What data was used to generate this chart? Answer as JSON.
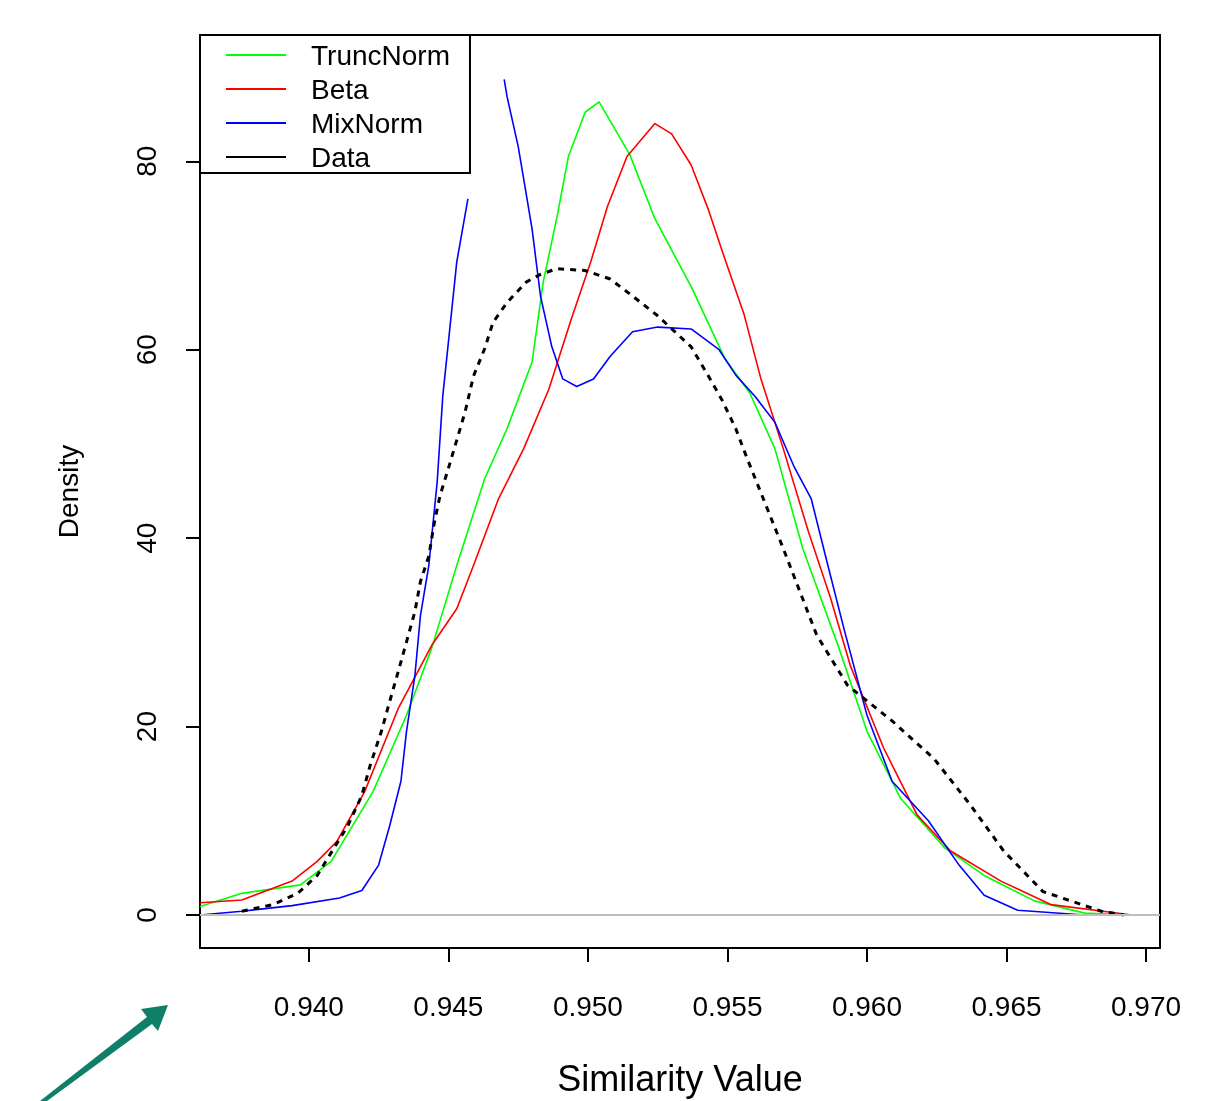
{
  "chart_data": {
    "type": "line",
    "xlabel": "Similarity Value",
    "ylabel": "Density",
    "xlim": [
      0.9361,
      0.9705
    ],
    "ylim": [
      -3.5,
      93.4
    ],
    "xticks": [
      {
        "value": 0.94,
        "label": "0.940"
      },
      {
        "value": 0.945,
        "label": "0.945"
      },
      {
        "value": 0.95,
        "label": "0.950"
      },
      {
        "value": 0.955,
        "label": "0.955"
      },
      {
        "value": 0.96,
        "label": "0.960"
      },
      {
        "value": 0.965,
        "label": "0.965"
      },
      {
        "value": 0.97,
        "label": "0.970"
      }
    ],
    "yticks": [
      0,
      20,
      40,
      60,
      80
    ],
    "grid": false,
    "legend": "top left",
    "marker": "none",
    "ref_lines": [
      {
        "axis": "y",
        "value": 0,
        "color": "#bebebe"
      }
    ],
    "series": [
      {
        "name": "TruncNorm",
        "color": "#00ff00",
        "line_style": "solid",
        "x": [
          0.9361,
          0.9376,
          0.9397,
          0.9408,
          0.9423,
          0.9435,
          0.9444,
          0.9453,
          0.9463,
          0.9471,
          0.948,
          0.9484,
          0.9489,
          0.9493,
          0.9499,
          0.9504,
          0.9515,
          0.9524,
          0.9537,
          0.9549,
          0.9558,
          0.9567,
          0.9577,
          0.959,
          0.96,
          0.9612,
          0.9628,
          0.9642,
          0.966,
          0.9678,
          0.9695
        ],
        "values": [
          0.9,
          2.3,
          3.2,
          5.7,
          13.1,
          21.2,
          28.3,
          37.1,
          46.3,
          51.6,
          58.7,
          67.2,
          74.2,
          80.5,
          85.2,
          86.3,
          80.7,
          73.9,
          66.7,
          59.1,
          55.4,
          49.5,
          38.9,
          28.3,
          19.5,
          12.4,
          7.1,
          4.2,
          1.5,
          0.2,
          0
        ]
      },
      {
        "name": "Beta",
        "color": "#ff0000",
        "line_style": "solid",
        "x": [
          0.9361,
          0.9376,
          0.9394,
          0.9403,
          0.941,
          0.942,
          0.9432,
          0.9444,
          0.9453,
          0.9459,
          0.9468,
          0.9477,
          0.9486,
          0.9494,
          0.9501,
          0.9507,
          0.9514,
          0.9524,
          0.953,
          0.9537,
          0.9543,
          0.9549,
          0.9556,
          0.9562,
          0.957,
          0.9579,
          0.9587,
          0.9594,
          0.9606,
          0.9618,
          0.963,
          0.9648,
          0.9666,
          0.9695
        ],
        "values": [
          1.3,
          1.6,
          3.6,
          5.7,
          7.8,
          13.1,
          21.9,
          28.6,
          32.5,
          37.1,
          44.2,
          49.5,
          55.8,
          63.2,
          69.3,
          75.2,
          80.5,
          84.0,
          82.9,
          79.6,
          75.0,
          69.7,
          63.7,
          56.9,
          49.5,
          40.7,
          33.6,
          26.5,
          17.7,
          10.6,
          6.8,
          3.6,
          1.1,
          0
        ]
      },
      {
        "name": "MixNorm",
        "color": "#0000ff",
        "line_style": "solid",
        "x": [
          0.9361,
          0.9376,
          0.9394,
          0.9411,
          0.9419,
          0.9425,
          0.9429,
          0.9433,
          0.9435,
          0.9438,
          0.944,
          0.9443,
          0.9446,
          0.9448,
          0.9453,
          0.9457,
          0.9463,
          0.947,
          0.9471,
          0.9475,
          0.9477,
          0.948,
          0.9483,
          0.9487,
          0.9491,
          0.9496,
          0.9502,
          0.9508,
          0.9516,
          0.9525,
          0.9537,
          0.9547,
          0.9553,
          0.956,
          0.9567,
          0.9574,
          0.958,
          0.9586,
          0.9592,
          0.96,
          0.9609,
          0.9622,
          0.9633,
          0.9642,
          0.9654,
          0.9678
        ],
        "values": [
          0,
          0.4,
          1.0,
          1.8,
          2.6,
          5.3,
          9.5,
          14.2,
          19.5,
          25.4,
          31.8,
          37.1,
          46.0,
          55.1,
          69.3,
          76.0,
          null,
          88.7,
          86.9,
          81.6,
          78.1,
          72.8,
          65.7,
          60.4,
          56.9,
          56.1,
          56.9,
          59.3,
          61.9,
          62.4,
          62.2,
          60.0,
          57.3,
          55.0,
          52.3,
          47.5,
          44.2,
          37.1,
          30.1,
          21.2,
          14.2,
          10.0,
          5.3,
          2.1,
          0.5,
          0
        ]
      },
      {
        "name": "Data",
        "color": "#000000",
        "line_style": "dashed",
        "x": [
          0.9376,
          0.9387,
          0.9396,
          0.9403,
          0.9409,
          0.9414,
          0.9419,
          0.9422,
          0.9426,
          0.9429,
          0.9432,
          0.9435,
          0.9438,
          0.944,
          0.9443,
          0.9445,
          0.9447,
          0.945,
          0.9456,
          0.9459,
          0.9463,
          0.9466,
          0.9471,
          0.9478,
          0.9483,
          0.9489,
          0.9499,
          0.9508,
          0.9516,
          0.9525,
          0.9537,
          0.9543,
          0.9548,
          0.9553,
          0.9557,
          0.957,
          0.9582,
          0.9593,
          0.9609,
          0.9624,
          0.9637,
          0.9649,
          0.9663,
          0.9684,
          0.9692
        ],
        "values": [
          0.4,
          1.1,
          2.3,
          4.2,
          7.1,
          9.5,
          12.7,
          15.9,
          19.5,
          22.7,
          25.8,
          29.0,
          32.2,
          35.4,
          38.1,
          41.7,
          44.5,
          47.4,
          53.4,
          57.2,
          60.1,
          62.9,
          65.0,
          67.2,
          68.0,
          68.6,
          68.4,
          67.5,
          65.7,
          63.6,
          60.3,
          57.3,
          54.7,
          51.6,
          48.5,
          38.9,
          29.7,
          24.4,
          20.6,
          16.6,
          11.7,
          6.8,
          2.5,
          0.4,
          0
        ]
      }
    ]
  }
}
